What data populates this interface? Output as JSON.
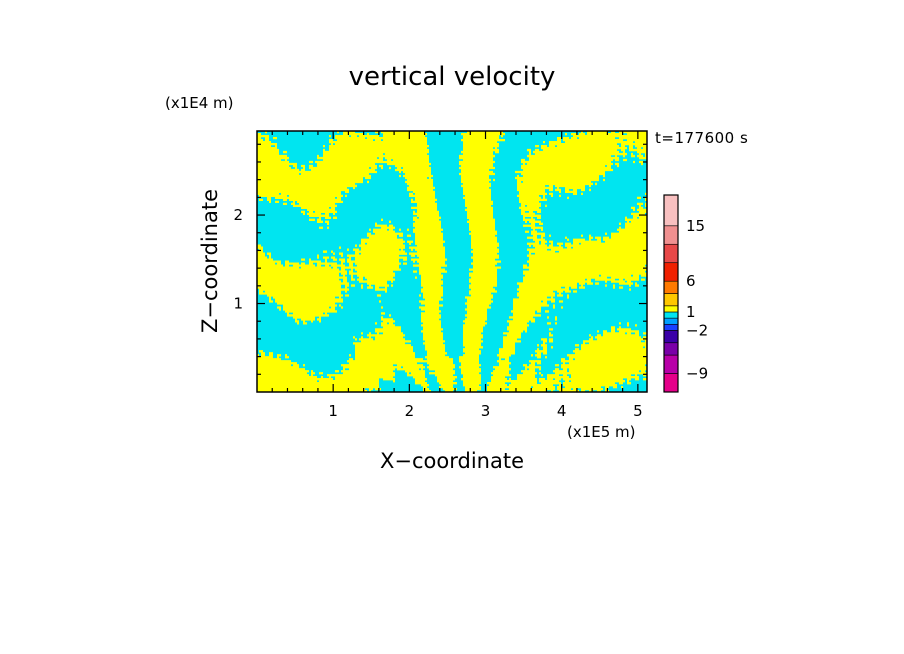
{
  "chart_data": {
    "type": "heatmap",
    "title": "vertical velocity",
    "time_label": "t=177600 s",
    "xlabel": "X−coordinate",
    "ylabel": "Z−coordinate",
    "x_unit": "(x1E5 m)",
    "y_unit": "(x1E4 m)",
    "xlim": [
      0,
      5.12
    ],
    "ylim": [
      0,
      2.95
    ],
    "x_ticks": [
      1,
      2,
      3,
      4,
      5
    ],
    "x_tick_labels": [
      "1",
      "2",
      "3",
      "4",
      "5"
    ],
    "y_ticks": [
      1,
      2
    ],
    "y_tick_labels": [
      "1",
      "2"
    ],
    "field_colors": {
      "negative": "#00e5f0",
      "positive": "#ffff00"
    },
    "colorbar": {
      "levels": [
        -12,
        -9,
        -6,
        -4,
        -2,
        -1,
        0,
        1,
        2,
        4,
        6,
        9,
        12,
        15,
        20
      ],
      "colors": [
        "#e5008a",
        "#b800a8",
        "#7a00a8",
        "#3a00a8",
        "#1a40ff",
        "#00a0ff",
        "#00e5f0",
        "#ffff00",
        "#ffc800",
        "#ff7a00",
        "#f02000",
        "#e84848",
        "#f09090",
        "#f8c0c0",
        "#fff0f0"
      ],
      "tick_values": [
        -9,
        -2,
        1,
        6,
        15
      ],
      "tick_labels": [
        "−9",
        "−2",
        "1",
        "6",
        "15"
      ]
    }
  }
}
